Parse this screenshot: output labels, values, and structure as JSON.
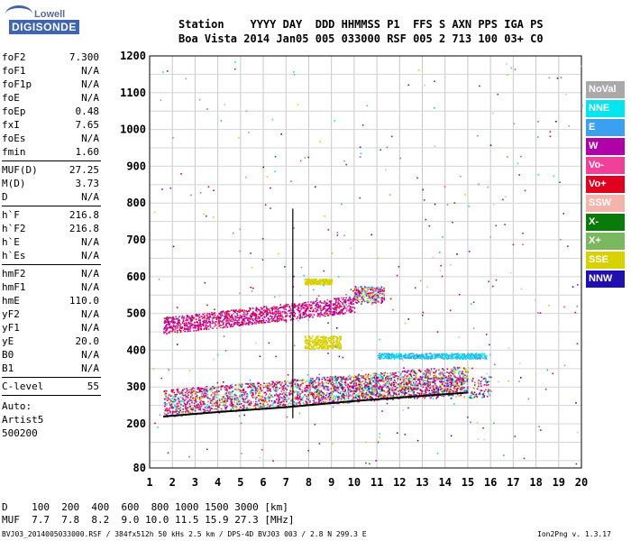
{
  "logo": {
    "top": "Lowell",
    "bottom": "DIGISONDE"
  },
  "header": {
    "line1": "Station    YYYY DAY  DDD HHMMSS P1  FFS S AXN PPS IGA PS",
    "line2": "Boa Vista 2014 Jan05 005 033000 RSF 005 2 713 100 03+ C0"
  },
  "params_group1": [
    {
      "name": "foF2",
      "value": "7.300"
    },
    {
      "name": "foF1",
      "value": "N/A"
    },
    {
      "name": "foF1p",
      "value": "N/A"
    },
    {
      "name": "foE",
      "value": "N/A"
    },
    {
      "name": "foEp",
      "value": "0.48"
    },
    {
      "name": "fxI",
      "value": "7.65"
    },
    {
      "name": "foEs",
      "value": "N/A"
    },
    {
      "name": "fmin",
      "value": "1.60"
    }
  ],
  "params_group2": [
    {
      "name": "MUF(D)",
      "value": "27.25"
    },
    {
      "name": "M(D)",
      "value": "3.73"
    },
    {
      "name": "D",
      "value": "N/A"
    }
  ],
  "params_group3": [
    {
      "name": "h`F",
      "value": "216.8"
    },
    {
      "name": "h`F2",
      "value": "216.8"
    },
    {
      "name": "h`E",
      "value": "N/A"
    },
    {
      "name": "h`Es",
      "value": "N/A"
    }
  ],
  "params_group4": [
    {
      "name": "hmF2",
      "value": "N/A"
    },
    {
      "name": "hmF1",
      "value": "N/A"
    },
    {
      "name": "hmE",
      "value": "110.0"
    },
    {
      "name": "yF2",
      "value": "N/A"
    },
    {
      "name": "yF1",
      "value": "N/A"
    },
    {
      "name": "yE",
      "value": "20.0"
    },
    {
      "name": "B0",
      "value": "N/A"
    },
    {
      "name": "B1",
      "value": "N/A"
    }
  ],
  "params_group5": [
    {
      "name": "C-level",
      "value": "55"
    }
  ],
  "auto": {
    "line1": "Auto:",
    "line2": "Artist5",
    "line3": "500200"
  },
  "legend": [
    {
      "label": "NoVal",
      "color": "#a9a9a9"
    },
    {
      "label": "NNE",
      "color": "#00e5ee"
    },
    {
      "label": "E",
      "color": "#3ca0f0"
    },
    {
      "label": "W",
      "color": "#b000a8"
    },
    {
      "label": "Vo-",
      "color": "#f0409a"
    },
    {
      "label": "Vo+",
      "color": "#e00020"
    },
    {
      "label": "SSW",
      "color": "#f4b4ac"
    },
    {
      "label": "X-",
      "color": "#0a7a0a"
    },
    {
      "label": "X+",
      "color": "#7ab860"
    },
    {
      "label": "SSE",
      "color": "#d8d000"
    },
    {
      "label": "NNW",
      "color": "#2010b0"
    }
  ],
  "chart_data": {
    "type": "scatter",
    "title": "",
    "xlabel": "",
    "ylabel": "",
    "xlim": [
      1,
      20
    ],
    "ylim": [
      80,
      1200
    ],
    "x_ticks": [
      "1",
      "2",
      "3",
      "4",
      "5",
      "6",
      "7",
      "8",
      "9",
      "10",
      "11",
      "12",
      "13",
      "14",
      "15",
      "16",
      "17",
      "18",
      "19",
      "20"
    ],
    "y_ticks": [
      "80",
      "200",
      "300",
      "400",
      "500",
      "600",
      "700",
      "800",
      "900",
      "1000",
      "1100",
      "1200"
    ],
    "grid": true,
    "trace_band": [
      {
        "x": 1.6,
        "y": 220
      },
      {
        "x": 4,
        "y": 232
      },
      {
        "x": 7,
        "y": 245
      },
      {
        "x": 10,
        "y": 262
      },
      {
        "x": 13,
        "y": 276
      },
      {
        "x": 15,
        "y": 285
      }
    ],
    "marker_line": {
      "x": 7.3,
      "y_from": 215,
      "y_to": 785
    }
  },
  "footer": {
    "d_line": "D    100  200  400  600  800 1000 1500 3000 [km]",
    "muf_line": "MUF  7.7  7.8  8.2  9.0 10.0 11.5 15.9 27.3 [MHz]",
    "file_line": "BVJ03_2014005033000.RSF / 384fx512h 50 kHs 2.5 km / DPS-4D BVJ03 003 / 2.8 N 299.3 E",
    "version": "Ion2Png v. 1.3.17"
  }
}
